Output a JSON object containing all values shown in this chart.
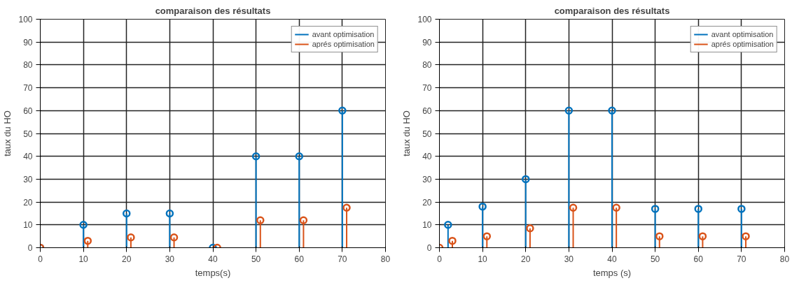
{
  "chart_data": [
    {
      "type": "lollipop",
      "title": "comparaison des résultats",
      "xlabel": "temps(s)",
      "ylabel": "taux du HO",
      "xlim": [
        0,
        80
      ],
      "ylim": [
        0,
        100
      ],
      "xticks": [
        0,
        10,
        20,
        30,
        40,
        50,
        60,
        70,
        80
      ],
      "yticks": [
        0,
        10,
        20,
        30,
        40,
        50,
        60,
        70,
        80,
        90,
        100
      ],
      "grid": true,
      "legend": "top right",
      "marker": "circle",
      "series": [
        {
          "name": "avant optimisation",
          "color": "#0072bd",
          "x": [
            0,
            10,
            20,
            30,
            40,
            50,
            60,
            70
          ],
          "values": [
            0,
            10,
            15,
            15,
            0,
            40,
            40,
            60
          ]
        },
        {
          "name": "aprés optimisation",
          "color": "#d95319",
          "x": [
            0,
            11,
            21,
            31,
            41,
            51,
            61,
            71
          ],
          "values": [
            0,
            3,
            4.5,
            4.5,
            0,
            12,
            12,
            17.5
          ]
        }
      ]
    },
    {
      "type": "lollipop",
      "title": "comparaison des résultats",
      "xlabel": "temps (s)",
      "ylabel": "taux du HO",
      "xlim": [
        0,
        80
      ],
      "ylim": [
        0,
        100
      ],
      "xticks": [
        0,
        10,
        20,
        30,
        40,
        50,
        60,
        70,
        80
      ],
      "yticks": [
        0,
        10,
        20,
        30,
        40,
        50,
        60,
        70,
        80,
        90,
        100
      ],
      "grid": true,
      "legend": "top right",
      "marker": "circle",
      "series": [
        {
          "name": "avant optimisation",
          "color": "#0072bd",
          "x": [
            2,
            10,
            20,
            30,
            40,
            50,
            60,
            70
          ],
          "values": [
            10,
            18,
            30,
            60,
            60,
            17,
            17,
            17
          ]
        },
        {
          "name": "aprés optimisation",
          "color": "#d95319",
          "x": [
            0,
            3,
            11,
            21,
            31,
            41,
            51,
            61,
            71
          ],
          "values": [
            0,
            3,
            5,
            8.5,
            17.5,
            17.5,
            5,
            5,
            5
          ]
        }
      ]
    }
  ]
}
